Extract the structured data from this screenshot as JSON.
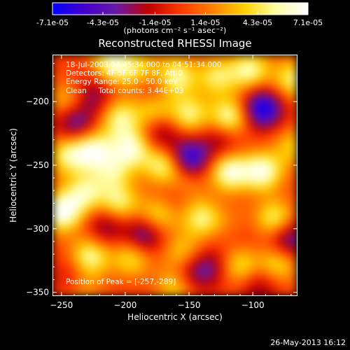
{
  "colorbar": {
    "tick_labels": [
      "-7.1e-05",
      "-4.3e-05",
      "-1.4e-05",
      "1.4e-05",
      "4.3e-05",
      "7.1e-05"
    ],
    "tick_values": [
      -7.1e-05,
      -4.3e-05,
      -1.4e-05,
      1.4e-05,
      4.3e-05,
      7.1e-05
    ],
    "range": [
      -7.1e-05,
      7.1e-05
    ],
    "units": "(photons cm⁻² s⁻¹ asec⁻²)",
    "colormap": [
      "#0000ff",
      "#4400cc",
      "#6a1aa8",
      "#c00000",
      "#ff3800",
      "#ff8000",
      "#ffd000",
      "#ffffa8",
      "#ffffff"
    ]
  },
  "title": "Reconstructed RHESSI Image",
  "info": {
    "line1": "18-Jul-2003 04:45:34.000 to 04:51:34.000",
    "line2": "Detectors: 4F 5F 6F 7F 8F, Att 0",
    "line3": "Energy Range: 25.0 - 50.0 keV",
    "line4": "Clean     Total counts: 3.44E+03"
  },
  "peak_label": "Position of Peak = [-257,-289]",
  "footer_date": "26-May-2013 16:12",
  "chart_data": {
    "type": "heatmap",
    "title": "Reconstructed RHESSI Image",
    "xlabel": "Heliocentric X (arcsec)",
    "ylabel": "Heliocentric Y (arcsec)",
    "xlim": [
      -257,
      -65
    ],
    "ylim": [
      -353,
      -163
    ],
    "x_ticks": [
      -250,
      -200,
      -150,
      -100
    ],
    "y_ticks": [
      -350,
      -300,
      -250,
      -200
    ],
    "x_tick_labels": [
      "−250",
      "−200",
      "−150",
      "−100"
    ],
    "y_tick_labels": [
      "−350",
      "−300",
      "−250",
      "−200"
    ],
    "value_units": "photons cm^-2 s^-1 asec^-2",
    "zlim": [
      -7.1e-05,
      7.1e-05
    ],
    "peak_position": [
      -257,
      -289
    ],
    "sources": [
      {
        "x": -210,
        "y": -170,
        "v": 6e-05
      },
      {
        "x": -188,
        "y": -176,
        "v": 4e-05
      },
      {
        "x": -160,
        "y": -180,
        "v": 5.5e-05
      },
      {
        "x": -128,
        "y": -180,
        "v": 4.5e-05
      },
      {
        "x": -102,
        "y": -175,
        "v": 5.5e-05
      },
      {
        "x": -68,
        "y": -182,
        "v": 5e-05
      },
      {
        "x": -245,
        "y": -200,
        "v": 4e-05
      },
      {
        "x": -205,
        "y": -212,
        "v": 5e-05
      },
      {
        "x": -178,
        "y": -205,
        "v": 4.5e-05
      },
      {
        "x": -150,
        "y": -210,
        "v": 5e-05
      },
      {
        "x": -118,
        "y": -212,
        "v": 6e-05
      },
      {
        "x": -245,
        "y": -242,
        "v": 5e-05
      },
      {
        "x": -225,
        "y": -238,
        "v": 6e-05
      },
      {
        "x": -210,
        "y": -255,
        "v": 4e-05
      },
      {
        "x": -195,
        "y": -236,
        "v": 6e-05
      },
      {
        "x": -170,
        "y": -250,
        "v": 5.5e-05
      },
      {
        "x": -155,
        "y": -265,
        "v": 4e-05
      },
      {
        "x": -118,
        "y": -255,
        "v": 6.5e-05
      },
      {
        "x": -92,
        "y": -255,
        "v": 6.5e-05
      },
      {
        "x": -68,
        "y": -235,
        "v": 3.5e-05
      },
      {
        "x": -250,
        "y": -287,
        "v": 7.1e-05
      },
      {
        "x": -232,
        "y": -272,
        "v": 5e-05
      },
      {
        "x": -205,
        "y": -280,
        "v": 5e-05
      },
      {
        "x": -175,
        "y": -290,
        "v": 4.5e-05
      },
      {
        "x": -140,
        "y": -292,
        "v": 5e-05
      },
      {
        "x": -112,
        "y": -298,
        "v": 4.5e-05
      },
      {
        "x": -82,
        "y": -293,
        "v": 5.5e-05
      },
      {
        "x": -228,
        "y": -322,
        "v": 5.5e-05
      },
      {
        "x": -195,
        "y": -323,
        "v": 4.5e-05
      },
      {
        "x": -155,
        "y": -320,
        "v": 4e-05
      },
      {
        "x": -110,
        "y": -330,
        "v": 4.5e-05
      },
      {
        "x": -80,
        "y": -328,
        "v": 4.5e-05
      },
      {
        "x": -235,
        "y": -345,
        "v": 4e-05
      },
      {
        "x": -160,
        "y": -345,
        "v": 4.5e-05
      },
      {
        "x": -92,
        "y": -205,
        "v": -7.1e-05
      },
      {
        "x": -150,
        "y": -245,
        "v": -6.5e-05
      },
      {
        "x": -240,
        "y": -215,
        "v": -5e-05
      },
      {
        "x": -185,
        "y": -305,
        "v": -5e-05
      },
      {
        "x": -110,
        "y": -300,
        "v": -4e-05
      },
      {
        "x": -72,
        "y": -308,
        "v": -5e-05
      },
      {
        "x": -225,
        "y": -195,
        "v": -3.5e-05
      },
      {
        "x": -172,
        "y": -225,
        "v": -3.5e-05
      },
      {
        "x": -125,
        "y": -230,
        "v": -3e-05
      },
      {
        "x": -215,
        "y": -298,
        "v": -3.5e-05
      },
      {
        "x": -160,
        "y": -270,
        "v": -3e-05
      },
      {
        "x": -150,
        "y": -335,
        "v": -4e-05
      },
      {
        "x": -240,
        "y": -340,
        "v": -3.5e-05
      },
      {
        "x": -95,
        "y": -345,
        "v": -3e-05
      },
      {
        "x": -132,
        "y": -330,
        "v": -3e-05
      },
      {
        "x": -180,
        "y": -190,
        "v": -3e-05
      }
    ]
  }
}
